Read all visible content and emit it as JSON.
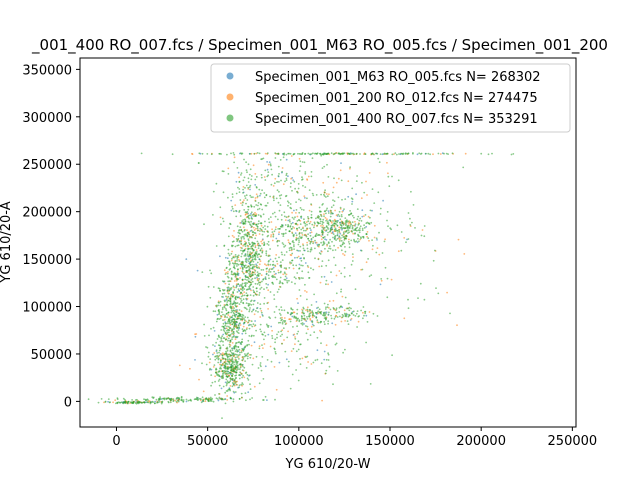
{
  "chart_data": {
    "type": "scatter",
    "title": "_001_400 RO_007.fcs / Specimen_001_M63 RO_005.fcs / Specimen_001_200",
    "xlabel": "YG 610/20-W",
    "ylabel": "YG 610/20-A",
    "xlim": [
      -20000,
      252000
    ],
    "ylim": [
      -27000,
      362000
    ],
    "xticks": [
      0,
      50000,
      100000,
      150000,
      200000,
      250000
    ],
    "yticks": [
      0,
      50000,
      100000,
      150000,
      200000,
      250000,
      300000,
      350000
    ],
    "grid": false,
    "legend_position": "top-right",
    "series": [
      {
        "name": "Specimen_001_M63 RO_005.fcs",
        "count_label": "N= 268302",
        "color": "#1f77b4",
        "points_shown": 260
      },
      {
        "name": "Specimen_001_200 RO_012.fcs",
        "count_label": "N= 274475",
        "color": "#ff7f0e",
        "points_shown": 600
      },
      {
        "name": "Specimen_001_400 RO_007.fcs",
        "count_label": "N= 353291",
        "color": "#2ca02c",
        "points_shown": 2600
      }
    ]
  }
}
